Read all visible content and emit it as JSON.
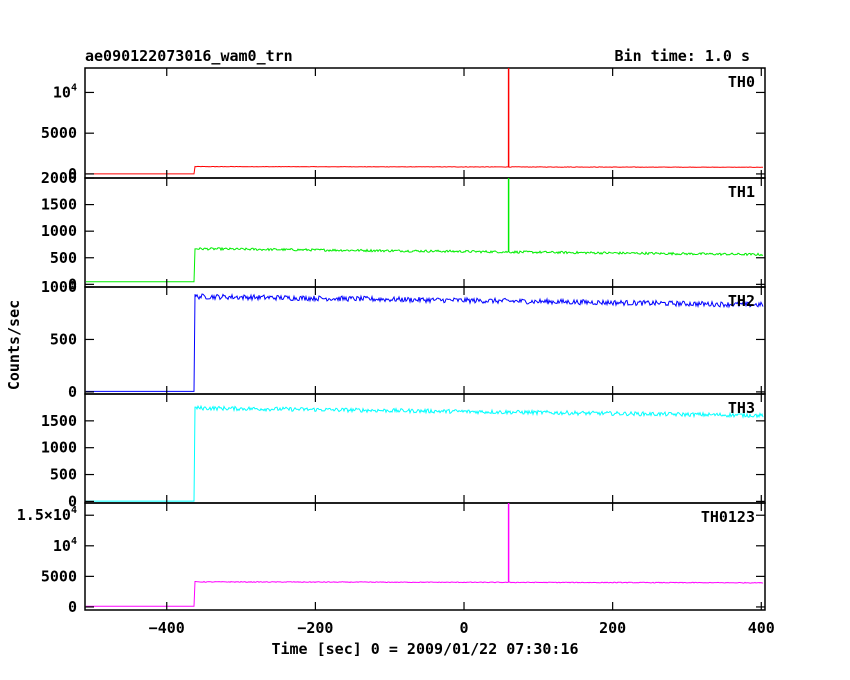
{
  "header": {
    "left": "ae090122073016_wam0_trn",
    "right": "Bin time: 1.0 s"
  },
  "axes": {
    "xlabel": "Time [sec] 0 = 2009/01/22 07:30:16",
    "ylabel": "Counts/sec"
  },
  "chart_data": {
    "type": "line",
    "xlabel": "Time [sec] 0 = 2009/01/22 07:30:16",
    "ylabel": "Counts/sec",
    "xlim": [
      -510,
      405
    ],
    "x_ticks": [
      -400,
      -200,
      0,
      200,
      400
    ],
    "x_tick_labels": [
      "−400",
      "−200",
      "0",
      "200",
      "400"
    ],
    "bin_time_s": 1.0,
    "series": [
      {
        "name": "TH0",
        "color": "#ff0000",
        "ylim": [
          -500,
          13000
        ],
        "y_ticks": [
          10000,
          5000,
          0
        ],
        "y_tick_labels": [
          "10^4",
          "5000",
          "0"
        ],
        "background_before_onset": 0,
        "onset_time": -363,
        "level_after_onset": 900,
        "level_at_end": 820,
        "noise": 25,
        "spike": {
          "x": 60,
          "y": 13000
        }
      },
      {
        "name": "TH1",
        "color": "#00ee00",
        "ylim": [
          -50,
          2000
        ],
        "y_ticks": [
          2000,
          1500,
          1000,
          500,
          0
        ],
        "y_tick_labels": [
          "2000",
          "1500",
          "1000",
          "500",
          "0"
        ],
        "background_before_onset": 50,
        "onset_time": -363,
        "level_after_onset": 670,
        "level_at_end": 560,
        "noise": 22,
        "spike": {
          "x": 60,
          "y": 2000
        }
      },
      {
        "name": "TH2",
        "color": "#0000ff",
        "ylim": [
          -20,
          1000
        ],
        "y_ticks": [
          1000,
          500,
          0
        ],
        "y_tick_labels": [
          "1000",
          "500",
          "0"
        ],
        "background_before_onset": 5,
        "onset_time": -363,
        "level_after_onset": 910,
        "level_at_end": 830,
        "noise": 25
      },
      {
        "name": "TH3",
        "color": "#00ffff",
        "ylim": [
          -30,
          2000
        ],
        "y_ticks": [
          1500,
          1000,
          500,
          0
        ],
        "y_tick_labels": [
          "1500",
          "1000",
          "500",
          "0"
        ],
        "background_before_onset": 5,
        "onset_time": -363,
        "level_after_onset": 1740,
        "level_at_end": 1600,
        "noise": 38
      },
      {
        "name": "TH0123",
        "color": "#ff00ff",
        "ylim": [
          -500,
          17000
        ],
        "y_ticks": [
          15000,
          10000,
          5000,
          0
        ],
        "y_tick_labels": [
          "1.5×10^4",
          "10^4",
          "5000",
          "0"
        ],
        "background_before_onset": 100,
        "onset_time": -363,
        "level_after_onset": 4100,
        "level_at_end": 3950,
        "noise": 60,
        "spike": {
          "x": 60,
          "y": 17000
        }
      }
    ]
  }
}
